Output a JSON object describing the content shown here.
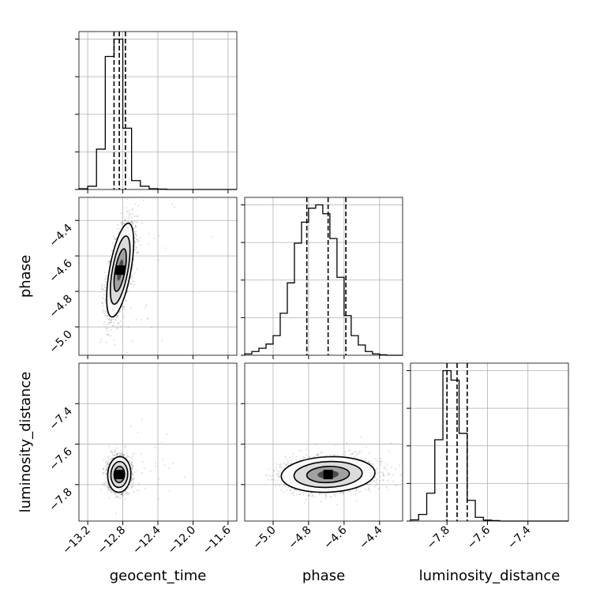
{
  "chart_data": {
    "type": "corner",
    "parameters": [
      "geocent_time",
      "phase",
      "luminosity_distance"
    ],
    "axis_labels": {
      "x": [
        "geocent_time",
        "phase",
        "luminosity_distance"
      ],
      "y": [
        "phase",
        "luminosity_distance"
      ]
    },
    "ranges": {
      "geocent_time": [
        -13.3,
        -11.5
      ],
      "phase": [
        -5.16,
        -4.27
      ],
      "luminosity_distance": [
        -7.98,
        -7.2
      ]
    },
    "ticks": {
      "geocent_time": [
        -13.2,
        -12.8,
        -12.4,
        -12.0,
        -11.6
      ],
      "phase": [
        -5.0,
        -4.8,
        -4.6,
        -4.4
      ],
      "luminosity_distance": [
        -7.8,
        -7.6,
        -7.4
      ]
    },
    "tick_labels": {
      "geocent_time": [
        "−13.2",
        "−12.8",
        "−12.4",
        "−12.0",
        "−11.6"
      ],
      "phase": [
        "−5.0",
        "−4.8",
        "−4.6",
        "−4.4"
      ],
      "luminosity_distance": [
        "−7.8",
        "−7.6",
        "−7.4"
      ]
    },
    "quantiles": {
      "geocent_time": [
        -12.9,
        -12.84,
        -12.77
      ],
      "phase": [
        -4.81,
        -4.69,
        -4.59
      ],
      "luminosity_distance": [
        -7.8,
        -7.75,
        -7.7
      ]
    },
    "histograms": {
      "geocent_time": {
        "edges": [
          -13.3,
          -13.2,
          -13.1,
          -13.0,
          -12.9,
          -12.8,
          -12.7,
          -12.6,
          -12.5,
          -12.4,
          -12.3,
          -12.2,
          -12.1,
          -12.0,
          -11.9,
          -11.8,
          -11.7,
          -11.6,
          -11.5
        ],
        "counts": [
          2,
          8,
          100,
          330,
          373,
          152,
          22,
          8,
          2,
          1,
          0,
          0,
          0,
          0,
          0,
          0,
          0,
          0
        ]
      },
      "phase": {
        "edges": [
          -5.16,
          -5.12,
          -5.08,
          -5.04,
          -5.0,
          -4.96,
          -4.92,
          -4.88,
          -4.84,
          -4.8,
          -4.76,
          -4.72,
          -4.68,
          -4.64,
          -4.6,
          -4.56,
          -4.52,
          -4.48,
          -4.44,
          -4.4,
          -4.36,
          -4.32,
          -4.27
        ],
        "counts": [
          3,
          8,
          15,
          24,
          42,
          90,
          155,
          240,
          285,
          315,
          322,
          303,
          250,
          167,
          85,
          42,
          22,
          8,
          3,
          1,
          0,
          0
        ]
      },
      "luminosity_distance": {
        "edges": [
          -7.98,
          -7.94,
          -7.9,
          -7.86,
          -7.82,
          -7.78,
          -7.74,
          -7.7,
          -7.66,
          -7.62,
          -7.58,
          -7.54,
          -7.5,
          -7.46,
          -7.42,
          -7.38,
          -7.34,
          -7.3,
          -7.26,
          -7.2
        ],
        "counts": [
          5,
          28,
          118,
          345,
          638,
          598,
          372,
          88,
          16,
          4,
          2,
          0,
          0,
          0,
          0,
          0,
          0,
          0,
          0
        ]
      }
    },
    "pairs": [
      {
        "x": "geocent_time",
        "y": "phase",
        "center": [
          -12.83,
          -4.68
        ],
        "sigma": [
          0.07,
          0.12
        ],
        "rho": 0.6
      },
      {
        "x": "geocent_time",
        "y": "luminosity_distance",
        "center": [
          -12.84,
          -7.75
        ],
        "sigma": [
          0.06,
          0.04
        ],
        "rho": 0.05
      },
      {
        "x": "phase",
        "y": "luminosity_distance",
        "center": [
          -4.69,
          -7.75
        ],
        "sigma": [
          0.12,
          0.04
        ],
        "rho": 0.1
      }
    ],
    "grid": true
  }
}
